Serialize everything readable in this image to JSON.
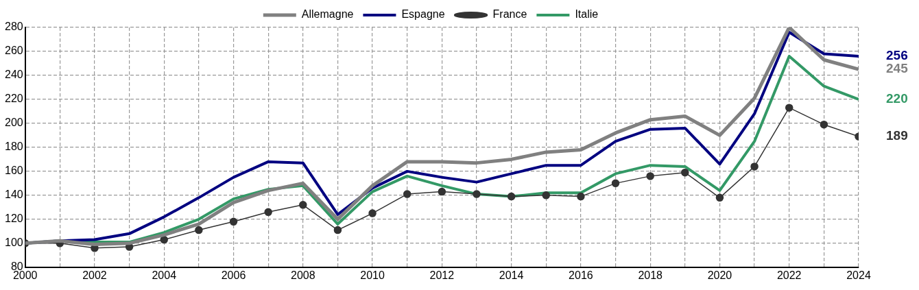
{
  "chart_data": {
    "type": "line",
    "x": [
      2000,
      2001,
      2002,
      2003,
      2004,
      2005,
      2006,
      2007,
      2008,
      2009,
      2010,
      2011,
      2012,
      2013,
      2014,
      2015,
      2016,
      2017,
      2018,
      2019,
      2020,
      2021,
      2022,
      2023,
      2024
    ],
    "series": [
      {
        "name": "Allemagne",
        "color": "#808080",
        "marker": "none",
        "values": [
          100,
          102,
          99,
          100,
          107,
          116,
          134,
          144,
          150,
          120,
          148,
          168,
          168,
          167,
          170,
          176,
          178,
          192,
          203,
          206,
          190,
          221,
          280,
          253,
          245
        ]
      },
      {
        "name": "Espagne",
        "color": "#000080",
        "marker": "none",
        "values": [
          100,
          102,
          103,
          108,
          122,
          138,
          155,
          168,
          167,
          124,
          146,
          160,
          155,
          151,
          158,
          165,
          165,
          185,
          195,
          196,
          166,
          208,
          276,
          258,
          256
        ]
      },
      {
        "name": "France",
        "color": "#333333",
        "marker": "circle",
        "values": [
          100,
          100,
          96,
          97,
          103,
          111,
          118,
          126,
          132,
          111,
          125,
          141,
          143,
          141,
          139,
          140,
          139,
          150,
          156,
          159,
          138,
          164,
          213,
          199,
          189
        ]
      },
      {
        "name": "Italie",
        "color": "#339966",
        "marker": "none",
        "values": [
          100,
          102,
          101,
          101,
          109,
          120,
          137,
          145,
          148,
          116,
          143,
          156,
          148,
          141,
          139,
          142,
          142,
          158,
          165,
          164,
          144,
          185,
          256,
          231,
          220
        ]
      }
    ],
    "xlim": [
      2000,
      2024
    ],
    "xticks": [
      2000,
      {
        "value": 2001,
        "label": null
      },
      2002,
      {
        "value": 2003,
        "label": null
      },
      2004,
      {
        "value": 2005,
        "label": null
      },
      2006,
      {
        "value": 2007,
        "label": null
      },
      2008,
      {
        "value": 2009,
        "label": null
      },
      2010,
      {
        "value": 2011,
        "label": null
      },
      2012,
      {
        "value": 2013,
        "label": null
      },
      2014,
      {
        "value": 2015,
        "label": null
      },
      2016,
      {
        "value": 2017,
        "label": null
      },
      2018,
      {
        "value": 2019,
        "label": null
      },
      2020,
      {
        "value": 2021,
        "label": null
      },
      2022,
      {
        "value": 2023,
        "label": null
      },
      2024
    ],
    "ylim": [
      80,
      280
    ],
    "yticks": [
      80,
      100,
      120,
      140,
      160,
      180,
      200,
      220,
      240,
      260,
      280
    ],
    "grid": true,
    "legend": "top",
    "line_style": "solid",
    "annotations": [
      "256",
      "245",
      "220",
      "189"
    ]
  }
}
